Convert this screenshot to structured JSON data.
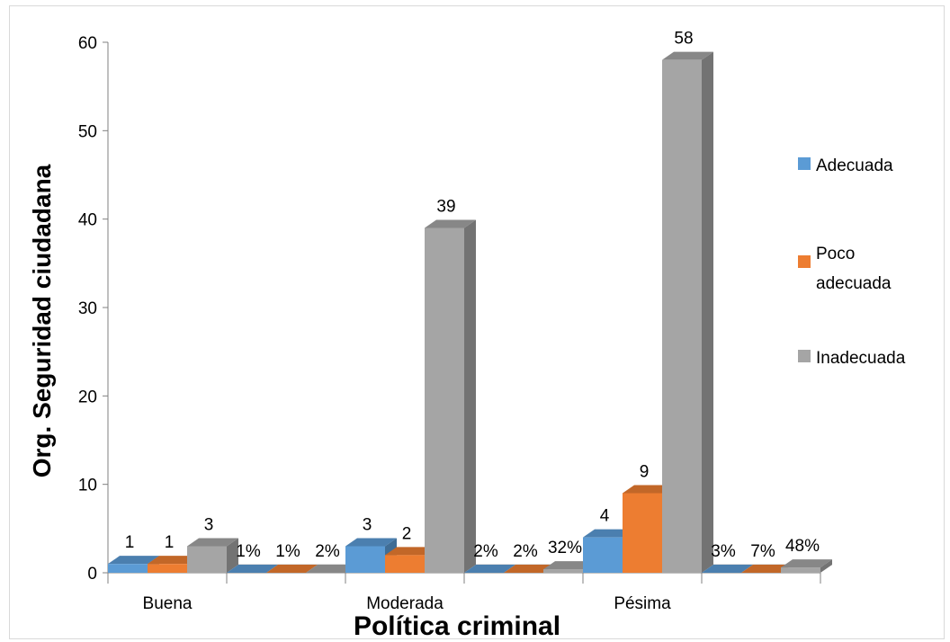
{
  "chart_data": {
    "type": "bar",
    "xlabel": "Política criminal",
    "ylabel": "Org. Seguridad ciudadana",
    "ylim": [
      0,
      60
    ],
    "yticks": [
      0,
      10,
      20,
      30,
      40,
      50,
      60
    ],
    "grid": false,
    "legend_position": "right",
    "category_labels": [
      "Buena",
      "Moderada",
      "Pésima"
    ],
    "groups": [
      {
        "category": "Buena",
        "values": [
          1,
          1,
          3
        ],
        "labels": [
          "1",
          "1",
          "3"
        ]
      },
      {
        "category": "",
        "values": [
          0,
          0,
          0
        ],
        "labels": [
          "1%",
          "1%",
          "2%"
        ]
      },
      {
        "category": "Moderada",
        "values": [
          3,
          2,
          39
        ],
        "labels": [
          "3",
          "2",
          "39"
        ]
      },
      {
        "category": "",
        "values": [
          0,
          0,
          0.4
        ],
        "labels": [
          "2%",
          "2%",
          "32%"
        ]
      },
      {
        "category": "Pésima",
        "values": [
          4,
          9,
          58
        ],
        "labels": [
          "4",
          "9",
          "58"
        ]
      },
      {
        "category": "",
        "values": [
          0,
          0,
          0.6
        ],
        "labels": [
          "3%",
          "7%",
          "48%"
        ]
      }
    ],
    "series": [
      {
        "name": "Adecuada",
        "color": "#5b9bd5"
      },
      {
        "name": "Poco adecuada",
        "color": "#ed7d31"
      },
      {
        "name": "Inadecuada",
        "color": "#a5a5a5"
      }
    ]
  }
}
